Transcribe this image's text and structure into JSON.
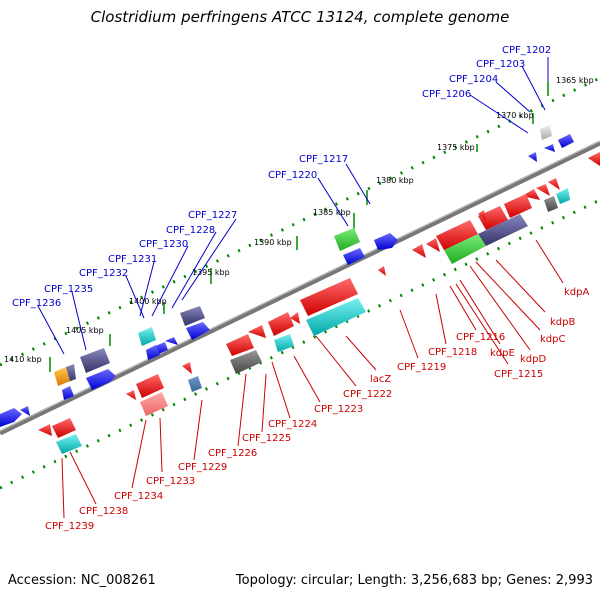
{
  "title": "Clostridium perfringens ATCC 13124, complete genome",
  "footer": {
    "accession": "Accession: NC_008261",
    "summary": "Topology: circular; Length: 3,256,683 bp; Genes: 2,993"
  },
  "ticks": [
    "1365 kbp",
    "1370 kbp",
    "1375 kbp",
    "1380 kbp",
    "1385 kbp",
    "1390 kbp",
    "1395 kbp",
    "1400 kbp",
    "1405 kbp",
    "1410 kbp"
  ],
  "labels_top": [
    "CPF_1202",
    "CPF_1203",
    "CPF_1204",
    "CPF_1206",
    "CPF_1217",
    "CPF_1220",
    "CPF_1227",
    "CPF_1228",
    "CPF_1230",
    "CPF_1231",
    "CPF_1232",
    "CPF_1235",
    "CPF_1236"
  ],
  "labels_bottom": [
    "kdpA",
    "kdpB",
    "kdpC",
    "kdpD",
    "kdpE",
    "CPF_1215",
    "CPF_1216",
    "CPF_1218",
    "CPF_1219",
    "lacZ",
    "CPF_1222",
    "CPF_1223",
    "CPF_1224",
    "CPF_1225",
    "CPF_1226",
    "CPF_1229",
    "CPF_1233",
    "CPF_1234",
    "CPF_1238",
    "CPF_1239"
  ],
  "colors": {
    "forward_gene": "#0000ff",
    "reverse_gene": "#ff0000",
    "label_top": "#0000cc",
    "label_bottom": "#cc0000",
    "backbone": "#888888",
    "tick_track": "#008800",
    "feature_green": "#33cc33",
    "feature_cyan": "#00cccc",
    "feature_slate": "#555599",
    "feature_orange": "#ff9900",
    "feature_gray": "#666666",
    "feature_pink": "#ff7777"
  }
}
